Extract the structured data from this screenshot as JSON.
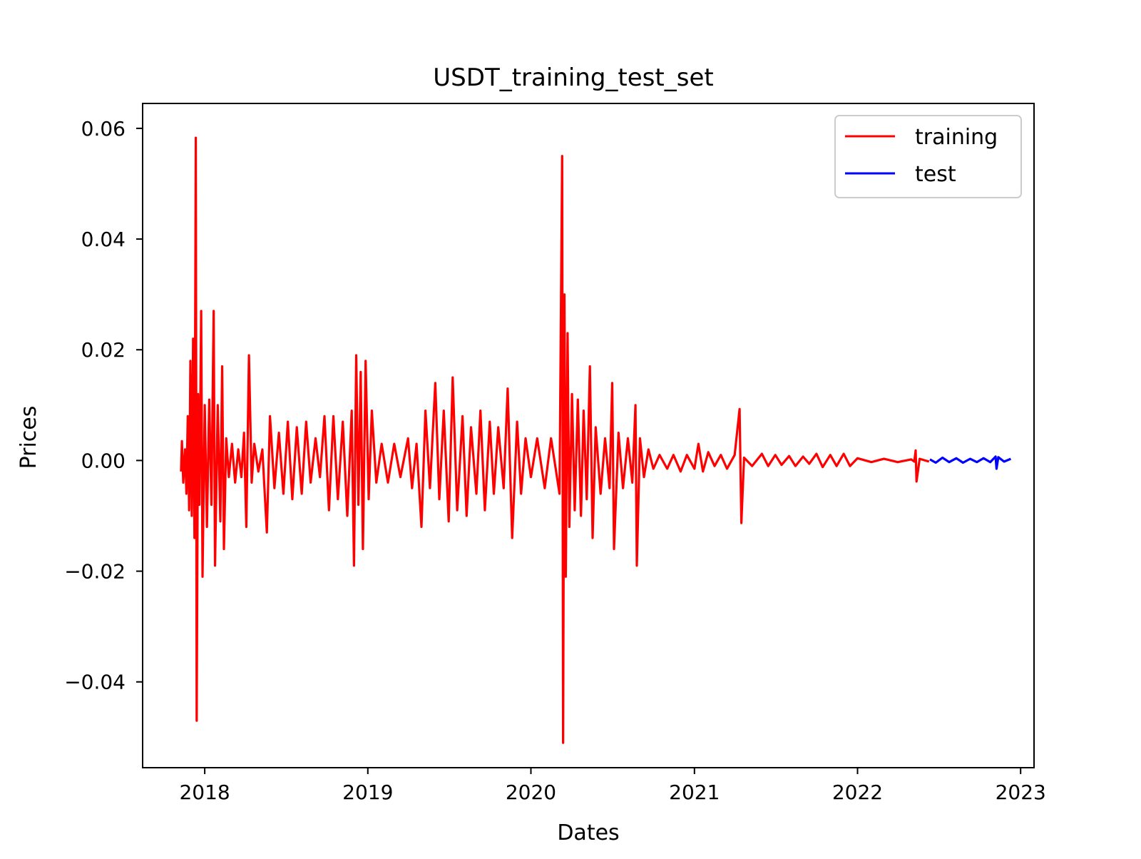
{
  "chart_data": {
    "type": "line",
    "title": "USDT_training_test_set",
    "xlabel": "Dates",
    "ylabel": "Prices",
    "x_tick_labels": [
      "2018",
      "2019",
      "2020",
      "2021",
      "2022",
      "2023"
    ],
    "x_ticks": [
      "2018-01-01",
      "2019-01-01",
      "2020-01-01",
      "2021-01-01",
      "2022-01-01",
      "2023-01-01"
    ],
    "y_ticks": [
      0.06,
      0.04,
      0.02,
      0.0,
      -0.02,
      -0.04
    ],
    "y_tick_labels": [
      "0.06",
      "0.04",
      "0.02",
      "0.00",
      "−0.02",
      "−0.04"
    ],
    "xlim": [
      "2017-08-15",
      "2023-01-31"
    ],
    "ylim": [
      -0.0555,
      0.0645
    ],
    "grid": false,
    "legend_position": "top-right",
    "series": [
      {
        "name": "training",
        "color": "#ff0000",
        "points": [
          [
            "2017-11-09",
            -0.002
          ],
          [
            "2017-11-11",
            0.0035
          ],
          [
            "2017-11-14",
            -0.004
          ],
          [
            "2017-11-18",
            0.002
          ],
          [
            "2017-11-21",
            -0.006
          ],
          [
            "2017-11-24",
            0.008
          ],
          [
            "2017-11-27",
            -0.009
          ],
          [
            "2017-11-30",
            0.018
          ],
          [
            "2017-12-03",
            -0.01
          ],
          [
            "2017-12-06",
            0.022
          ],
          [
            "2017-12-09",
            -0.014
          ],
          [
            "2017-12-12",
            0.0583
          ],
          [
            "2017-12-14",
            -0.047
          ],
          [
            "2017-12-17",
            0.012
          ],
          [
            "2017-12-20",
            -0.008
          ],
          [
            "2017-12-24",
            0.027
          ],
          [
            "2017-12-27",
            -0.021
          ],
          [
            "2018-01-01",
            0.01
          ],
          [
            "2018-01-06",
            -0.012
          ],
          [
            "2018-01-11",
            0.011
          ],
          [
            "2018-01-16",
            -0.008
          ],
          [
            "2018-01-21",
            0.027
          ],
          [
            "2018-01-24",
            -0.019
          ],
          [
            "2018-01-30",
            0.01
          ],
          [
            "2018-02-05",
            -0.011
          ],
          [
            "2018-02-09",
            0.017
          ],
          [
            "2018-02-13",
            -0.016
          ],
          [
            "2018-02-18",
            0.004
          ],
          [
            "2018-02-24",
            -0.003
          ],
          [
            "2018-03-03",
            0.003
          ],
          [
            "2018-03-10",
            -0.004
          ],
          [
            "2018-03-17",
            0.002
          ],
          [
            "2018-03-24",
            -0.003
          ],
          [
            "2018-03-30",
            0.005
          ],
          [
            "2018-04-04",
            -0.012
          ],
          [
            "2018-04-10",
            0.019
          ],
          [
            "2018-04-16",
            -0.004
          ],
          [
            "2018-04-22",
            0.003
          ],
          [
            "2018-05-01",
            -0.002
          ],
          [
            "2018-05-10",
            0.002
          ],
          [
            "2018-05-20",
            -0.013
          ],
          [
            "2018-05-27",
            0.008
          ],
          [
            "2018-06-06",
            -0.005
          ],
          [
            "2018-06-16",
            0.005
          ],
          [
            "2018-06-26",
            -0.006
          ],
          [
            "2018-07-06",
            0.007
          ],
          [
            "2018-07-16",
            -0.007
          ],
          [
            "2018-07-26",
            0.006
          ],
          [
            "2018-08-06",
            -0.006
          ],
          [
            "2018-08-16",
            0.007
          ],
          [
            "2018-08-26",
            -0.004
          ],
          [
            "2018-09-06",
            0.004
          ],
          [
            "2018-09-16",
            -0.003
          ],
          [
            "2018-09-26",
            0.008
          ],
          [
            "2018-10-06",
            -0.009
          ],
          [
            "2018-10-16",
            0.008
          ],
          [
            "2018-10-26",
            -0.007
          ],
          [
            "2018-11-06",
            0.007
          ],
          [
            "2018-11-16",
            -0.01
          ],
          [
            "2018-11-26",
            0.009
          ],
          [
            "2018-12-01",
            -0.019
          ],
          [
            "2018-12-06",
            0.019
          ],
          [
            "2018-12-11",
            -0.008
          ],
          [
            "2018-12-16",
            0.016
          ],
          [
            "2018-12-21",
            -0.016
          ],
          [
            "2018-12-27",
            0.018
          ],
          [
            "2019-01-03",
            -0.007
          ],
          [
            "2019-01-10",
            0.009
          ],
          [
            "2019-01-20",
            -0.004
          ],
          [
            "2019-02-01",
            0.003
          ],
          [
            "2019-02-15",
            -0.004
          ],
          [
            "2019-03-01",
            0.003
          ],
          [
            "2019-03-15",
            -0.003
          ],
          [
            "2019-04-01",
            0.004
          ],
          [
            "2019-04-10",
            -0.005
          ],
          [
            "2019-04-20",
            0.003
          ],
          [
            "2019-05-01",
            -0.012
          ],
          [
            "2019-05-10",
            0.009
          ],
          [
            "2019-05-20",
            -0.005
          ],
          [
            "2019-06-01",
            0.014
          ],
          [
            "2019-06-10",
            -0.007
          ],
          [
            "2019-06-20",
            0.009
          ],
          [
            "2019-07-01",
            -0.011
          ],
          [
            "2019-07-10",
            0.015
          ],
          [
            "2019-07-20",
            -0.009
          ],
          [
            "2019-08-01",
            0.008
          ],
          [
            "2019-08-10",
            -0.01
          ],
          [
            "2019-08-20",
            0.006
          ],
          [
            "2019-09-01",
            -0.006
          ],
          [
            "2019-09-10",
            0.009
          ],
          [
            "2019-09-20",
            -0.009
          ],
          [
            "2019-10-01",
            0.007
          ],
          [
            "2019-10-10",
            -0.006
          ],
          [
            "2019-10-20",
            0.006
          ],
          [
            "2019-11-01",
            -0.005
          ],
          [
            "2019-11-10",
            0.013
          ],
          [
            "2019-11-20",
            -0.014
          ],
          [
            "2019-12-01",
            0.007
          ],
          [
            "2019-12-10",
            -0.006
          ],
          [
            "2019-12-20",
            0.004
          ],
          [
            "2020-01-01",
            -0.003
          ],
          [
            "2020-01-15",
            0.004
          ],
          [
            "2020-02-01",
            -0.005
          ],
          [
            "2020-02-15",
            0.004
          ],
          [
            "2020-03-05",
            -0.006
          ],
          [
            "2020-03-11",
            0.055
          ],
          [
            "2020-03-13",
            -0.051
          ],
          [
            "2020-03-16",
            0.03
          ],
          [
            "2020-03-19",
            -0.021
          ],
          [
            "2020-03-23",
            0.023
          ],
          [
            "2020-03-27",
            -0.012
          ],
          [
            "2020-04-02",
            0.012
          ],
          [
            "2020-04-08",
            -0.009
          ],
          [
            "2020-04-15",
            0.011
          ],
          [
            "2020-04-22",
            -0.01
          ],
          [
            "2020-04-28",
            0.009
          ],
          [
            "2020-05-05",
            -0.007
          ],
          [
            "2020-05-12",
            0.017
          ],
          [
            "2020-05-18",
            -0.014
          ],
          [
            "2020-05-25",
            0.006
          ],
          [
            "2020-06-05",
            -0.006
          ],
          [
            "2020-06-15",
            0.004
          ],
          [
            "2020-06-25",
            -0.005
          ],
          [
            "2020-07-01",
            0.014
          ],
          [
            "2020-07-05",
            -0.016
          ],
          [
            "2020-07-15",
            0.005
          ],
          [
            "2020-07-25",
            -0.005
          ],
          [
            "2020-08-05",
            0.004
          ],
          [
            "2020-08-15",
            -0.004
          ],
          [
            "2020-08-22",
            0.01
          ],
          [
            "2020-08-25",
            -0.019
          ],
          [
            "2020-09-01",
            0.004
          ],
          [
            "2020-09-10",
            -0.003
          ],
          [
            "2020-09-20",
            0.002
          ],
          [
            "2020-10-01",
            -0.0015
          ],
          [
            "2020-10-15",
            0.001
          ],
          [
            "2020-11-01",
            -0.0015
          ],
          [
            "2020-11-15",
            0.001
          ],
          [
            "2020-12-01",
            -0.002
          ],
          [
            "2020-12-15",
            0.001
          ],
          [
            "2021-01-01",
            -0.0015
          ],
          [
            "2021-01-10",
            0.003
          ],
          [
            "2021-01-20",
            -0.002
          ],
          [
            "2021-02-01",
            0.0015
          ],
          [
            "2021-02-15",
            -0.001
          ],
          [
            "2021-03-01",
            0.001
          ],
          [
            "2021-03-15",
            -0.0015
          ],
          [
            "2021-04-01",
            0.001
          ],
          [
            "2021-04-12",
            0.0093
          ],
          [
            "2021-04-16",
            -0.0113
          ],
          [
            "2021-04-22",
            0.0005
          ],
          [
            "2021-05-10",
            -0.001
          ],
          [
            "2021-06-01",
            0.0012
          ],
          [
            "2021-06-15",
            -0.001
          ],
          [
            "2021-07-01",
            0.001
          ],
          [
            "2021-07-15",
            -0.0008
          ],
          [
            "2021-08-01",
            0.0008
          ],
          [
            "2021-08-15",
            -0.001
          ],
          [
            "2021-09-01",
            0.0007
          ],
          [
            "2021-09-15",
            -0.0006
          ],
          [
            "2021-10-01",
            0.0012
          ],
          [
            "2021-10-15",
            -0.0012
          ],
          [
            "2021-11-01",
            0.001
          ],
          [
            "2021-11-15",
            -0.001
          ],
          [
            "2021-12-01",
            0.0012
          ],
          [
            "2021-12-15",
            -0.001
          ],
          [
            "2022-01-01",
            0.0004
          ],
          [
            "2022-02-01",
            -0.0003
          ],
          [
            "2022-03-01",
            0.0003
          ],
          [
            "2022-04-01",
            -0.0003
          ],
          [
            "2022-05-01",
            0.0002
          ],
          [
            "2022-05-08",
            -0.0002
          ],
          [
            "2022-05-11",
            0.0018
          ],
          [
            "2022-05-13",
            -0.0038
          ],
          [
            "2022-05-20",
            0.0003
          ],
          [
            "2022-06-10",
            -0.0002
          ]
        ]
      },
      {
        "name": "test",
        "color": "#0000ff",
        "points": [
          [
            "2022-06-12",
            0.0002
          ],
          [
            "2022-06-25",
            -0.0004
          ],
          [
            "2022-07-10",
            0.0005
          ],
          [
            "2022-07-25",
            -0.0003
          ],
          [
            "2022-08-10",
            0.0004
          ],
          [
            "2022-08-25",
            -0.0004
          ],
          [
            "2022-09-10",
            0.0003
          ],
          [
            "2022-09-25",
            -0.0003
          ],
          [
            "2022-10-10",
            0.0004
          ],
          [
            "2022-10-25",
            -0.0003
          ],
          [
            "2022-11-06",
            0.0007
          ],
          [
            "2022-11-08",
            -0.0015
          ],
          [
            "2022-11-12",
            0.0006
          ],
          [
            "2022-11-25",
            -0.0002
          ],
          [
            "2022-12-10",
            0.0003
          ]
        ]
      }
    ]
  }
}
